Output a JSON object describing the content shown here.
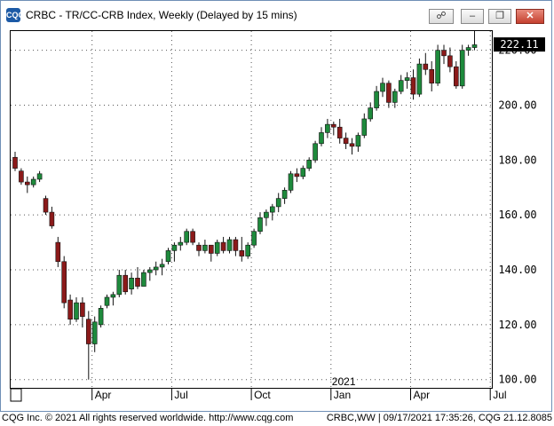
{
  "window": {
    "title": "CRBC - TR/CC-CRB Index, Weekly (Delayed by 15 mins)",
    "app_icon": "CQG",
    "buttons": [
      "link-icon",
      "minimize-icon",
      "restore-icon",
      "close-icon"
    ]
  },
  "footer": {
    "left": "CQG Inc. © 2021 All rights reserved worldwide. http://www.cqg.com",
    "right": "CRBC,WW | 09/17/2021 17:35:26, CQG 21.12.8085"
  },
  "colors": {
    "up": "#1e8a3c",
    "down": "#8b1a1a",
    "grid": "#555555",
    "last_bg": "#000000"
  },
  "chart_data": {
    "type": "candlestick",
    "title": "CRBC - TR/CC-CRB Index, Weekly (Delayed by 15 mins)",
    "ylim": [
      97,
      227
    ],
    "y_ticks": [
      "100.00",
      "120.00",
      "140.00",
      "160.00",
      "180.00",
      "200.00",
      "220.00"
    ],
    "y_tick_values": [
      100,
      120,
      140,
      160,
      180,
      200,
      220
    ],
    "x_ticks": [
      {
        "label": "Apr",
        "week": 13
      },
      {
        "label": "Jul",
        "week": 26
      },
      {
        "label": "Oct",
        "week": 39
      },
      {
        "label": "Jan",
        "week": 52
      },
      {
        "label": "Apr",
        "week": 65
      },
      {
        "label": "Jul",
        "week": 78
      }
    ],
    "year_label": {
      "label": "2021",
      "week": 52
    },
    "last_price": "222.11",
    "last_value": 222.11,
    "grid": true,
    "candles": [
      [
        181,
        183,
        176,
        177
      ],
      [
        176,
        177,
        171,
        172
      ],
      [
        172,
        174,
        168,
        171
      ],
      [
        171,
        174,
        170,
        173
      ],
      [
        173,
        176,
        172,
        175
      ],
      [
        166,
        167,
        160,
        161
      ],
      [
        161,
        163,
        155,
        156
      ],
      [
        150,
        152,
        141,
        143
      ],
      [
        143,
        145,
        126,
        128
      ],
      [
        129,
        131,
        120,
        122
      ],
      [
        122,
        130,
        121,
        128
      ],
      [
        128,
        130,
        119,
        123
      ],
      [
        122,
        125,
        100,
        113
      ],
      [
        113,
        123,
        110,
        121
      ],
      [
        120,
        127,
        119,
        126
      ],
      [
        127,
        131,
        126,
        130
      ],
      [
        130,
        132,
        127,
        131
      ],
      [
        131,
        140,
        130,
        138
      ],
      [
        138,
        140,
        131,
        132
      ],
      [
        133,
        139,
        131,
        137
      ],
      [
        137,
        141,
        133,
        134
      ],
      [
        134,
        140,
        134,
        139
      ],
      [
        139,
        141,
        136,
        140
      ],
      [
        140,
        143,
        138,
        141
      ],
      [
        141,
        144,
        138,
        142
      ],
      [
        143,
        148,
        142,
        147
      ],
      [
        147,
        150,
        143,
        149
      ],
      [
        149,
        152,
        147,
        150
      ],
      [
        150,
        155,
        149,
        154
      ],
      [
        154,
        155,
        149,
        150
      ],
      [
        149,
        150,
        145,
        147
      ],
      [
        147,
        151,
        146,
        149
      ],
      [
        149,
        149,
        143,
        146
      ],
      [
        146,
        151,
        145,
        150
      ],
      [
        150,
        152,
        146,
        147
      ],
      [
        147,
        152,
        146,
        151
      ],
      [
        151,
        152,
        145,
        147
      ],
      [
        147,
        152,
        143,
        145
      ],
      [
        145,
        150,
        144,
        149
      ],
      [
        149,
        155,
        148,
        154
      ],
      [
        154,
        161,
        153,
        159
      ],
      [
        159,
        162,
        156,
        161
      ],
      [
        161,
        164,
        158,
        163
      ],
      [
        163,
        168,
        161,
        166
      ],
      [
        166,
        170,
        164,
        169
      ],
      [
        169,
        176,
        168,
        175
      ],
      [
        175,
        177,
        172,
        174
      ],
      [
        174,
        178,
        173,
        177
      ],
      [
        177,
        181,
        176,
        180
      ],
      [
        180,
        187,
        179,
        186
      ],
      [
        186,
        192,
        185,
        190
      ],
      [
        190,
        195,
        188,
        193
      ],
      [
        193,
        194,
        189,
        192
      ],
      [
        192,
        195,
        186,
        188
      ],
      [
        188,
        190,
        184,
        186
      ],
      [
        186,
        188,
        182,
        185
      ],
      [
        185,
        190,
        183,
        189
      ],
      [
        189,
        197,
        188,
        195
      ],
      [
        195,
        201,
        194,
        199
      ],
      [
        199,
        207,
        198,
        205
      ],
      [
        205,
        210,
        203,
        208
      ],
      [
        208,
        209,
        199,
        201
      ],
      [
        201,
        206,
        199,
        205
      ],
      [
        205,
        211,
        204,
        209
      ],
      [
        209,
        212,
        206,
        210
      ],
      [
        210,
        213,
        202,
        204
      ],
      [
        204,
        217,
        203,
        215
      ],
      [
        215,
        219,
        211,
        213
      ],
      [
        213,
        216,
        205,
        208
      ],
      [
        208,
        222,
        207,
        220
      ],
      [
        220,
        222,
        215,
        218
      ],
      [
        218,
        221,
        212,
        214
      ],
      [
        214,
        216,
        206,
        207
      ],
      [
        207,
        222,
        206,
        220
      ],
      [
        220,
        222,
        218,
        221
      ],
      [
        221,
        227,
        220,
        222
      ]
    ]
  }
}
